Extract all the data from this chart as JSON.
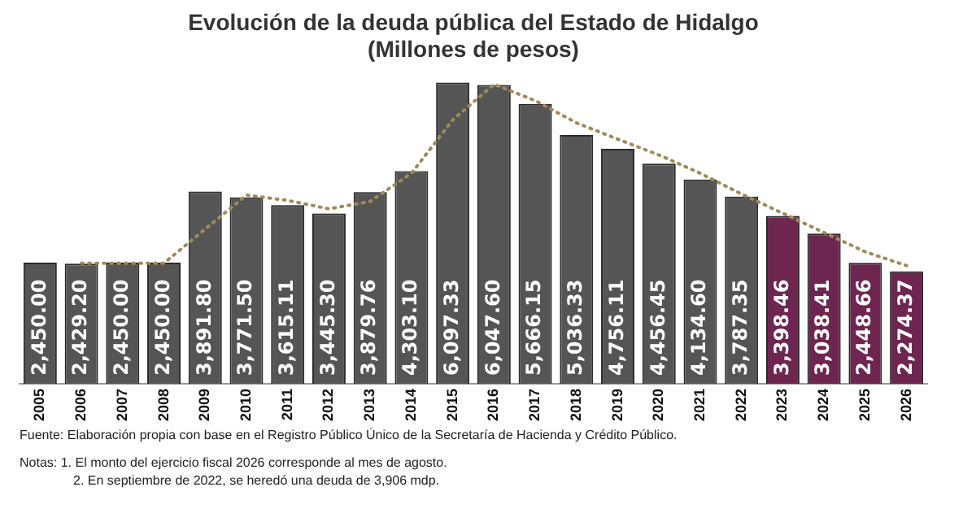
{
  "chart_data": {
    "type": "bar",
    "title": "Evolución de la deuda pública del Estado de Hidalgo",
    "subtitle": "(Millones de pesos)",
    "categories": [
      "2005",
      "2006",
      "2007",
      "2008",
      "2009",
      "2010",
      "2011",
      "2012",
      "2013",
      "2014",
      "2015",
      "2016",
      "2017",
      "2018",
      "2019",
      "2020",
      "2021",
      "2022",
      "2023",
      "2024",
      "2025",
      "2026"
    ],
    "ylim": [
      0,
      6200
    ],
    "series": [
      {
        "values": [
          2450.0,
          2429.2,
          2450.0,
          2450.0,
          3891.8,
          3771.5,
          3615.11,
          3445.3,
          3879.76,
          4303.1,
          6097.33,
          6047.6,
          5666.15,
          5036.33,
          4756.11,
          4456.45,
          4134.6,
          3787.35,
          3398.46,
          3038.41,
          2448.66,
          2274.37
        ],
        "colors": [
          "#555555",
          "#555555",
          "#555555",
          "#555555",
          "#555555",
          "#555555",
          "#555555",
          "#555555",
          "#555555",
          "#555555",
          "#555555",
          "#555555",
          "#555555",
          "#555555",
          "#555555",
          "#555555",
          "#555555",
          "#555555",
          "#6e2650",
          "#6e2650",
          "#6e2650",
          "#6e2650"
        ],
        "value_labels": [
          "2,450.00",
          "2,429.20",
          "2,450.00",
          "2,450.00",
          "3,891.80",
          "3,771.50",
          "3,615.11",
          "3,445.30",
          "3,879.76",
          "4,303.10",
          "6,097.33",
          "6,047.60",
          "5,666.15",
          "5,036.33",
          "4,756.11",
          "4,456.45",
          "4,134.60",
          "3,787.35",
          "3,398.46",
          "3,038.41",
          "2,448.66",
          "2,274.37"
        ]
      },
      {
        "type": "line",
        "color": "#a08a5a",
        "line_style": "dotted",
        "values": [
          null,
          2440,
          2440,
          2440,
          3130,
          3820,
          3710,
          3540,
          3690,
          4260,
          5340,
          6060,
          5730,
          5280,
          4950,
          4630,
          4260,
          3840,
          3450,
          3060,
          2670,
          2390
        ]
      }
    ],
    "legend": false,
    "grid": false,
    "tick_labels": "x",
    "annotations": [
      "Fuente: Elaboración propia con base en el Registro Público Único de la Secretaría de Hacienda y Crédito Público.",
      "Notas: 1. El monto del ejercicio fiscal 2026 corresponde al mes de agosto.",
      "2. En septiembre de 2022, se heredó una deuda de 3,906 mdp."
    ]
  }
}
